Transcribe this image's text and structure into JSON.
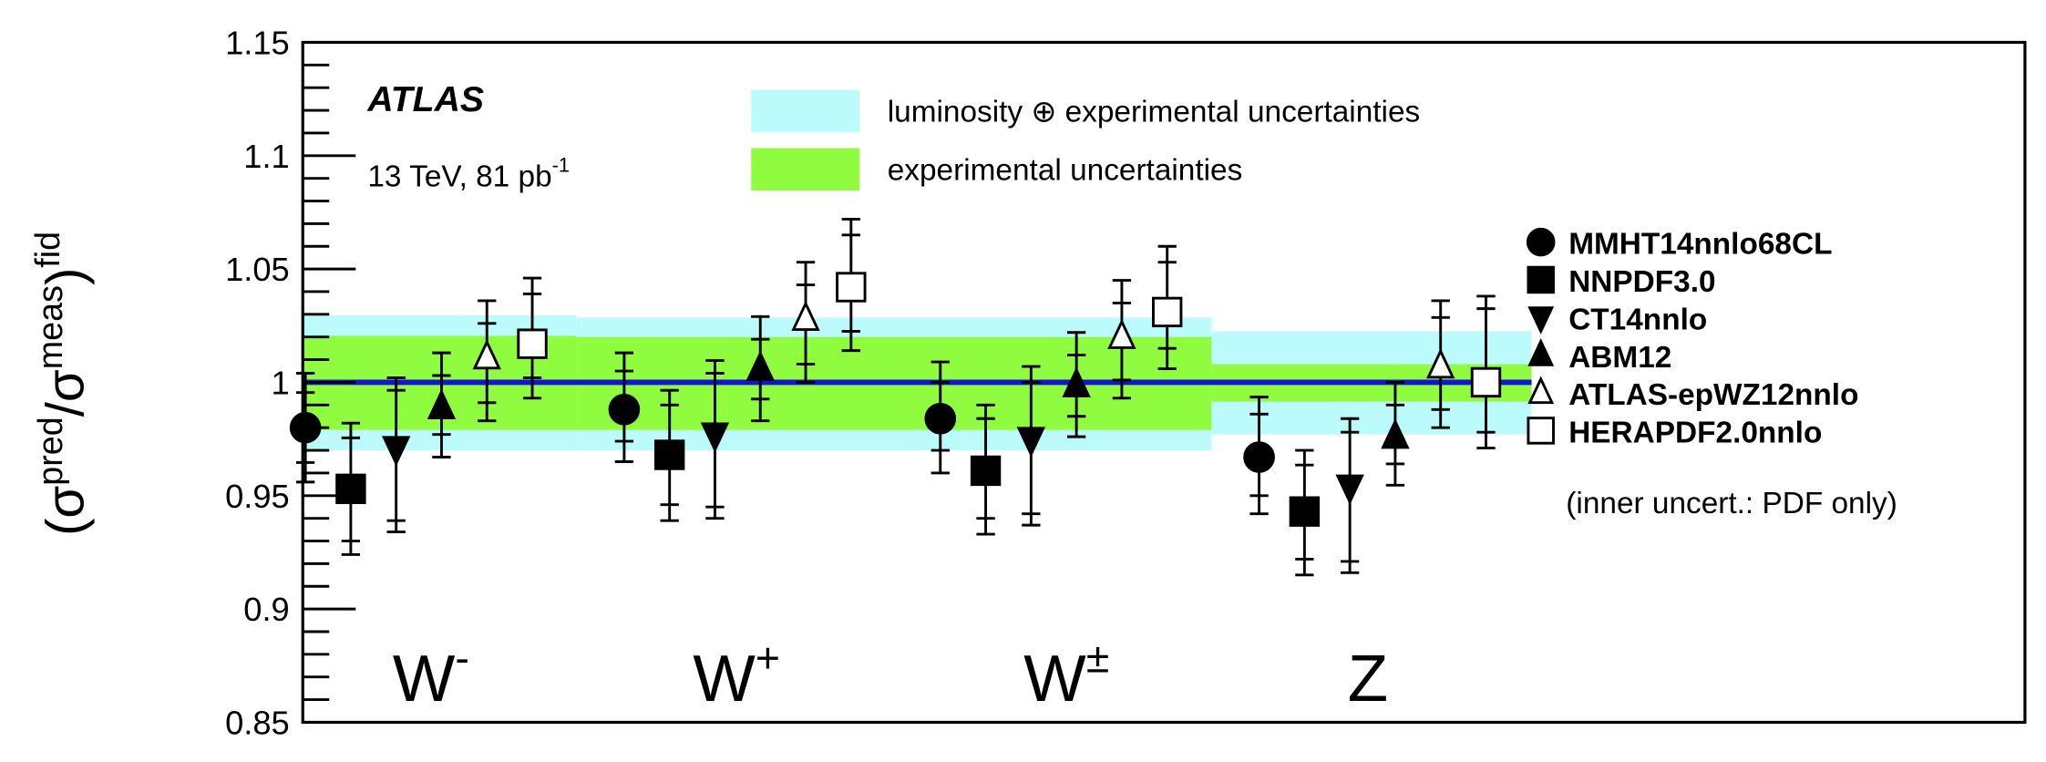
{
  "chart_data": {
    "type": "scatter",
    "title": "",
    "experiment_label": "ATLAS",
    "energy_label": "13 TeV, 81 pb",
    "energy_label_sup": "-1",
    "ylabel": {
      "sigma_pred": "σ",
      "pred": "pred",
      "slash": "/",
      "sigma_meas": "σ",
      "meas": "meas",
      "fid": "fid",
      "lparen": "(",
      "rparen": ")"
    },
    "ylim": [
      0.85,
      1.15
    ],
    "yticks": [
      "0.85",
      "0.9",
      "0.95",
      "1",
      "1.05",
      "1.1",
      "1.15"
    ],
    "grid": false,
    "reference_line": 1.0,
    "categories": [
      {
        "base": "W",
        "sup": "-"
      },
      {
        "base": "W",
        "sup": "+"
      },
      {
        "base": "W",
        "sup": "±"
      },
      {
        "base": "Z",
        "sup": ""
      }
    ],
    "bands": {
      "lumi_exp": {
        "label": "luminosity ⊕ experimental uncertainties",
        "color": "#bbfbfb",
        "ranges": [
          [
            0.97,
            1.0295
          ],
          [
            0.97,
            1.0286
          ],
          [
            0.97,
            1.0286
          ],
          [
            0.977,
            1.0225
          ]
        ]
      },
      "exp": {
        "label": "experimental uncertainties",
        "color": "#8ffc3f",
        "ranges": [
          [
            0.979,
            1.0205
          ],
          [
            0.979,
            1.02
          ],
          [
            0.979,
            1.02
          ],
          [
            0.9915,
            1.008
          ]
        ]
      }
    },
    "reference_color": "#1515d0",
    "series": [
      {
        "name": "MMHT14nnlo68CL",
        "marker": "circle",
        "filled": true,
        "values": [
          0.98,
          0.988,
          0.984,
          0.967
        ],
        "outer": [
          [
            0.956,
            1.004
          ],
          [
            0.965,
            1.013
          ],
          [
            0.96,
            1.009
          ],
          [
            0.942,
            0.9935
          ]
        ],
        "inner": [
          [
            0.9646,
            0.9955
          ],
          [
            0.974,
            1.005
          ],
          [
            0.97,
            1.0
          ],
          [
            0.95,
            0.986
          ]
        ]
      },
      {
        "name": "NNPDF3.0",
        "marker": "square",
        "filled": true,
        "values": [
          0.953,
          0.968,
          0.961,
          0.943
        ],
        "outer": [
          [
            0.924,
            0.982
          ],
          [
            0.939,
            0.9965
          ],
          [
            0.933,
            0.99
          ],
          [
            0.915,
            0.97
          ]
        ],
        "inner": [
          [
            0.93,
            0.9755
          ],
          [
            0.946,
            0.99
          ],
          [
            0.94,
            0.984
          ],
          [
            0.922,
            0.9635
          ]
        ]
      },
      {
        "name": "CT14nnlo",
        "marker": "triangle-down",
        "filled": true,
        "values": [
          0.971,
          0.977,
          0.975,
          0.954
        ],
        "outer": [
          [
            0.934,
            1.002
          ],
          [
            0.94,
            1.0096
          ],
          [
            0.937,
            1.007
          ],
          [
            0.916,
            0.984
          ]
        ],
        "inner": [
          [
            0.939,
            0.9965
          ],
          [
            0.945,
            1.004
          ],
          [
            0.942,
            1.0
          ],
          [
            0.921,
            0.978
          ]
        ]
      },
      {
        "name": "ABM12",
        "marker": "triangle-up",
        "filled": true,
        "values": [
          0.989,
          1.006,
          0.9987,
          0.976
        ],
        "outer": [
          [
            0.967,
            1.013
          ],
          [
            0.983,
            1.029
          ],
          [
            0.976,
            1.022
          ],
          [
            0.9546,
            1.0
          ]
        ],
        "inner": [
          [
            0.977,
            1.003
          ],
          [
            0.9926,
            1.019
          ],
          [
            0.985,
            1.012
          ],
          [
            0.964,
            0.99
          ]
        ]
      },
      {
        "name": "ATLAS-epWZ12nnlo",
        "marker": "triangle-up",
        "filled": false,
        "values": [
          1.011,
          1.028,
          1.02,
          1.007
        ],
        "outer": [
          [
            0.983,
            1.036
          ],
          [
            1.0,
            1.053
          ],
          [
            0.993,
            1.045
          ],
          [
            0.98,
            1.036
          ]
        ],
        "inner": [
          [
            0.991,
            1.026
          ],
          [
            1.008,
            1.043
          ],
          [
            1.001,
            1.035
          ],
          [
            0.988,
            1.0286
          ]
        ]
      },
      {
        "name": "HERAPDF2.0nnlo",
        "marker": "square",
        "filled": false,
        "values": [
          1.017,
          1.042,
          1.031,
          1.0
        ],
        "outer": [
          [
            0.993,
            1.046
          ],
          [
            1.014,
            1.072
          ],
          [
            1.006,
            1.06
          ],
          [
            0.971,
            1.038
          ]
        ],
        "inner": [
          [
            1.002,
            1.039
          ],
          [
            1.0225,
            1.065
          ],
          [
            1.015,
            1.053
          ],
          [
            0.978,
            1.0325
          ]
        ]
      }
    ],
    "legend_note": "(inner uncert.: PDF only)",
    "legend_placement": "right"
  }
}
